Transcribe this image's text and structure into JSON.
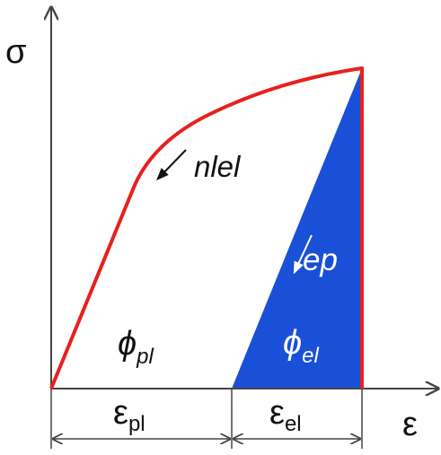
{
  "axes": {
    "y_label": "σ",
    "x_label": "ε"
  },
  "annotations": {
    "nlel": "nlel",
    "ep": "ep",
    "phi_pl_symbol": "ϕ",
    "phi_pl_sub": "pl",
    "phi_el_symbol": "ϕ",
    "phi_el_sub": "el",
    "eps_pl_symbol": "ε",
    "eps_pl_sub": "pl",
    "eps_el_symbol": "ε",
    "eps_el_sub": "el"
  },
  "colors": {
    "curve": "#e8201e",
    "fill": "#1a4fd8",
    "axis": "#444444",
    "text": "#111111"
  }
}
